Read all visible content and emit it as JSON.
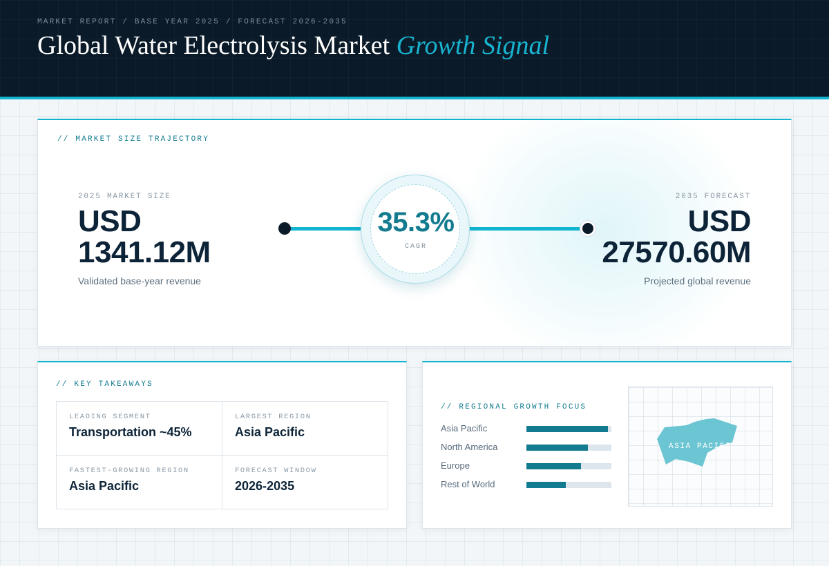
{
  "header": {
    "breadcrumb": "MARKET REPORT / BASE YEAR 2025 / FORECAST 2026-2035",
    "title_main": "Global Water Electrolysis Market",
    "title_accent": "Growth Signal"
  },
  "trajectory": {
    "section_label": "// MARKET SIZE TRAJECTORY",
    "base": {
      "label": "2025 MARKET SIZE",
      "currency": "USD",
      "amount": "1341.12M",
      "caption": "Validated base-year revenue"
    },
    "forecast": {
      "label": "2035 FORECAST",
      "currency": "USD",
      "amount": "27570.60M",
      "caption": "Projected global revenue"
    },
    "cagr": {
      "value": "35.3%",
      "caption": "CAGR"
    }
  },
  "takeaways": {
    "section_label": "// KEY TAKEAWAYS",
    "items": [
      {
        "label": "LEADING SEGMENT",
        "value": "Transportation ~45%"
      },
      {
        "label": "LARGEST REGION",
        "value": "Asia Pacific"
      },
      {
        "label": "FASTEST-GROWING REGION",
        "value": "Asia Pacific"
      },
      {
        "label": "FORECAST WINDOW",
        "value": "2026-2035"
      }
    ]
  },
  "regional": {
    "section_label": "// REGIONAL GROWTH FOCUS",
    "regions": [
      {
        "name": "Asia Pacific",
        "share": 0.96
      },
      {
        "name": "North America",
        "share": 0.72
      },
      {
        "name": "Europe",
        "share": 0.64
      },
      {
        "name": "Rest of World",
        "share": 0.46
      }
    ],
    "map_label": "ASIA PACIFIC",
    "colors": {
      "bar": "#137b8f",
      "track": "#dde6ec",
      "map_fill": "#6cc5d2"
    }
  }
}
